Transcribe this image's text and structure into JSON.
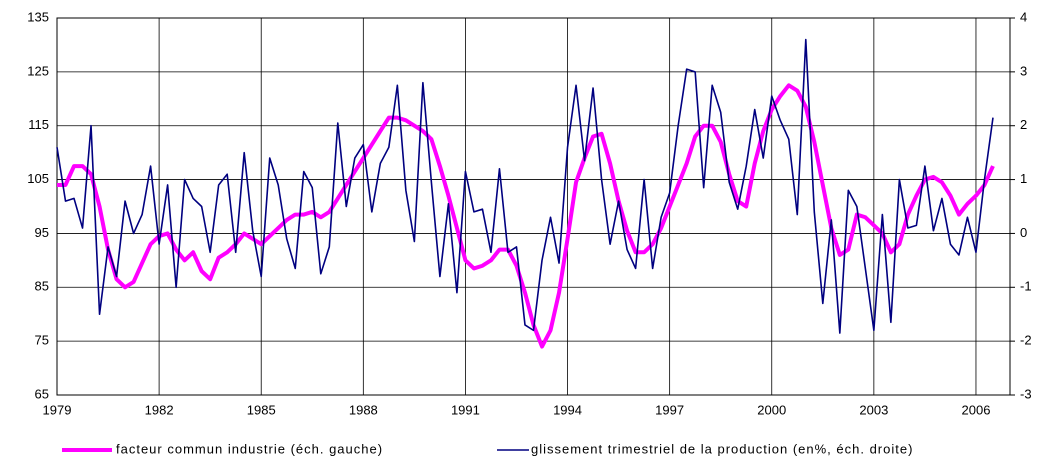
{
  "chart_data": {
    "type": "line",
    "x": [
      1979,
      1979.25,
      1979.5,
      1979.75,
      1980,
      1980.25,
      1980.5,
      1980.75,
      1981,
      1981.25,
      1981.5,
      1981.75,
      1982,
      1982.25,
      1982.5,
      1982.75,
      1983,
      1983.25,
      1983.5,
      1983.75,
      1984,
      1984.25,
      1984.5,
      1984.75,
      1985,
      1985.25,
      1985.5,
      1985.75,
      1986,
      1986.25,
      1986.5,
      1986.75,
      1987,
      1987.25,
      1987.5,
      1987.75,
      1988,
      1988.25,
      1988.5,
      1988.75,
      1989,
      1989.25,
      1989.5,
      1989.75,
      1990,
      1990.25,
      1990.5,
      1990.75,
      1991,
      1991.25,
      1991.5,
      1991.75,
      1992,
      1992.25,
      1992.5,
      1992.75,
      1993,
      1993.25,
      1993.5,
      1993.75,
      1994,
      1994.25,
      1994.5,
      1994.75,
      1995,
      1995.25,
      1995.5,
      1995.75,
      1996,
      1996.25,
      1996.5,
      1996.75,
      1997,
      1997.25,
      1997.5,
      1997.75,
      1998,
      1998.25,
      1998.5,
      1998.75,
      1999,
      1999.25,
      1999.5,
      1999.75,
      2000,
      2000.25,
      2000.5,
      2000.75,
      2001,
      2001.25,
      2001.5,
      2001.75,
      2002,
      2002.25,
      2002.5,
      2002.75,
      2003,
      2003.25,
      2003.5,
      2003.75,
      2004,
      2004.25,
      2004.5,
      2004.75,
      2005,
      2005.25,
      2005.5,
      2005.75,
      2006,
      2006.25,
      2006.5
    ],
    "series": [
      {
        "name": "facteur commun industrie (éch. gauche)",
        "color": "#ff00ff",
        "values": [
          104,
          104,
          107.5,
          107.5,
          106,
          100,
          92,
          86.5,
          85,
          86,
          89.5,
          93,
          94.5,
          95,
          92,
          90,
          91.5,
          88,
          86.5,
          90.5,
          91.5,
          93,
          95,
          94,
          93,
          94.5,
          96,
          97.5,
          98.5,
          98.5,
          99,
          98,
          99,
          101.5,
          104,
          106.5,
          109,
          111.5,
          114,
          116.5,
          116.5,
          116,
          115,
          114,
          112.5,
          107.5,
          102,
          96,
          90,
          88.5,
          89,
          90,
          92,
          92,
          89,
          84,
          78,
          74,
          77,
          84,
          94,
          104.5,
          109,
          113,
          113.5,
          108,
          101,
          95.5,
          91.5,
          91.5,
          93,
          96,
          100,
          104,
          108,
          113,
          115,
          115,
          112,
          106,
          101,
          100,
          108,
          114,
          118,
          120.5,
          122.5,
          121.5,
          118.5,
          112,
          104,
          96,
          91,
          92,
          98.5,
          98,
          96.5,
          95,
          91.5,
          93,
          98.5,
          102,
          105,
          105.5,
          104.5,
          102,
          98.5,
          100.5,
          102,
          104,
          107.5
        ]
      },
      {
        "name": "glissement trimestriel de la production (en%, éch. droite)",
        "color": "#000080",
        "axis": "y2",
        "values": [
          1.6,
          0.6,
          0.65,
          0.1,
          2.0,
          -1.5,
          -0.25,
          -0.8,
          0.6,
          0,
          0.35,
          1.25,
          -0.2,
          0.9,
          -1.0,
          1.0,
          0.65,
          0.5,
          -0.35,
          0.9,
          1.1,
          -0.35,
          1.5,
          0.05,
          -0.8,
          1.4,
          0.9,
          -0.1,
          -0.65,
          1.15,
          0.85,
          -0.75,
          -0.25,
          2.05,
          0.5,
          1.4,
          1.65,
          0.4,
          1.3,
          1.6,
          2.75,
          0.8,
          -0.15,
          2.8,
          0.95,
          -0.8,
          0.55,
          -1.1,
          1.15,
          0.4,
          0.45,
          -0.35,
          1.2,
          -0.35,
          -0.25,
          -1.7,
          -1.8,
          -0.5,
          0.3,
          -0.55,
          1.6,
          2.75,
          1.35,
          2.7,
          1.0,
          -0.2,
          0.6,
          -0.3,
          -0.65,
          1.0,
          -0.65,
          0.3,
          0.75,
          2.0,
          3.05,
          3.0,
          0.85,
          2.75,
          2.25,
          0.95,
          0.45,
          1.25,
          2.3,
          1.4,
          2.55,
          2.1,
          1.75,
          0.35,
          3.6,
          0.4,
          -1.3,
          0.25,
          -1.85,
          0.8,
          0.5,
          -0.65,
          -1.8,
          0.35,
          -1.65,
          1.0,
          0.1,
          0.15,
          1.25,
          0.05,
          0.65,
          -0.2,
          -0.4,
          0.3,
          -0.35,
          1.0,
          2.15
        ]
      }
    ],
    "xlim": [
      1979,
      2007
    ],
    "xticks": [
      1979,
      1982,
      1985,
      1988,
      1991,
      1994,
      1997,
      2000,
      2003,
      2006
    ],
    "ylim": [
      65,
      135
    ],
    "yticks": [
      65,
      75,
      85,
      95,
      105,
      115,
      125,
      135
    ],
    "y2lim": [
      -3,
      4
    ],
    "y2ticks": [
      -3,
      -2,
      -1,
      0,
      1,
      2,
      3,
      4
    ],
    "grid": true,
    "legend": "bottom"
  }
}
